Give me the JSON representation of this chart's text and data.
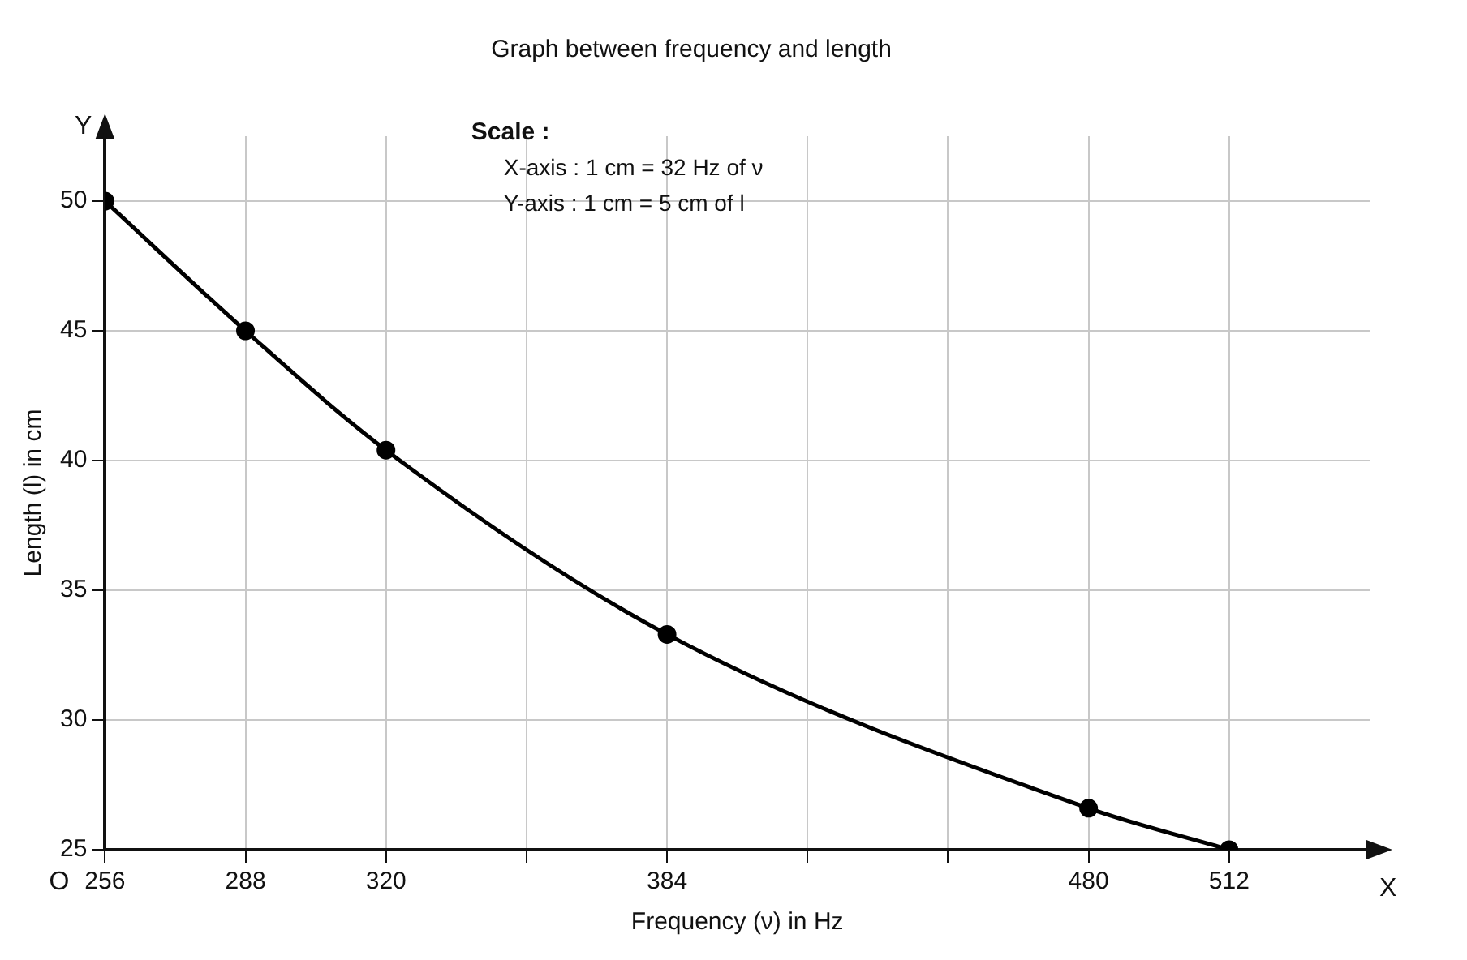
{
  "chart_data": {
    "type": "line",
    "title": "Graph between frequency and length",
    "xlabel": "Frequency (ν) in Hz",
    "ylabel": "Length (l) in cm",
    "annotations": [
      "Scale :",
      "X-axis : 1 cm = 32 Hz of ν",
      "Y-axis : 1 cm = 5 cm of l",
      "O",
      "X",
      "Y"
    ],
    "x": [
      256,
      288,
      320,
      384,
      480,
      512
    ],
    "series": [
      {
        "color": "#000000",
        "values": [
          50,
          45,
          40.4,
          33.3,
          26.6,
          25
        ]
      }
    ],
    "xlim": [
      256,
      544
    ],
    "xticks": [
      256,
      288,
      320,
      {
        "value": 352,
        "label": null
      },
      384,
      {
        "value": 416,
        "label": null
      },
      {
        "value": 448,
        "label": null
      },
      480,
      512
    ],
    "ylim": [
      25,
      52.5
    ],
    "yticks": [
      25,
      30,
      35,
      40,
      45,
      50
    ],
    "grid": true,
    "marker": "circle",
    "line_style": "solid",
    "legend": false
  }
}
